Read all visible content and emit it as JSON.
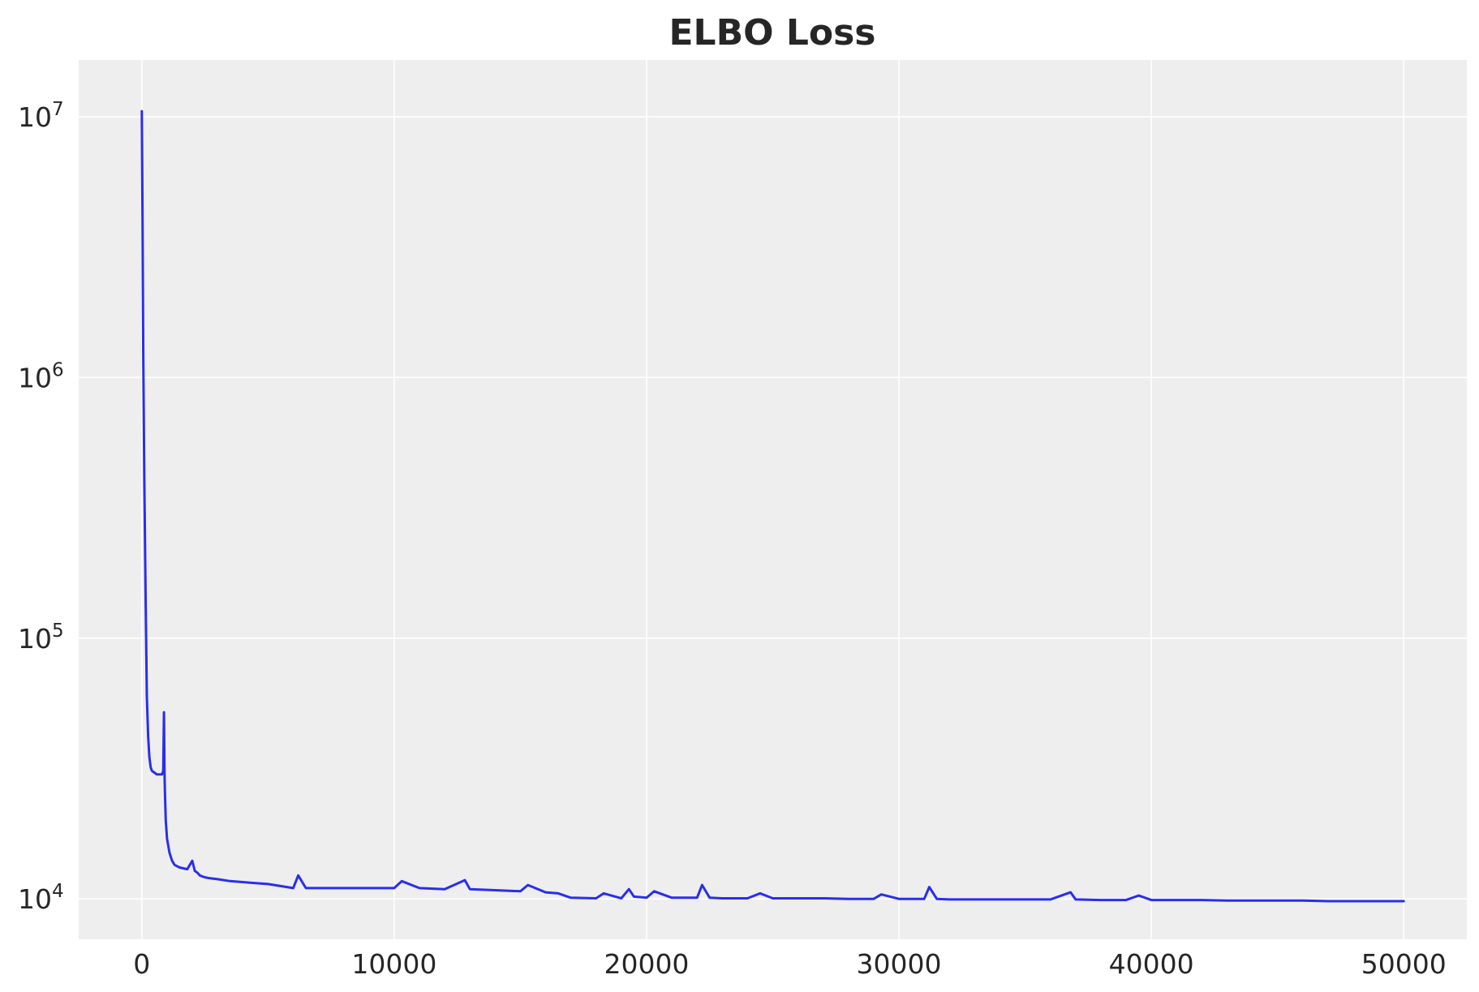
{
  "chart_data": {
    "type": "line",
    "title": "ELBO Loss",
    "xlabel": "",
    "ylabel": "",
    "xlim": [
      -2500,
      52500
    ],
    "ylim": [
      7000,
      16500000
    ],
    "y_scale": "log",
    "grid": true,
    "legend": "none",
    "x_ticks": [
      0,
      10000,
      20000,
      30000,
      40000,
      50000
    ],
    "x_tick_labels": [
      "0",
      "10000",
      "20000",
      "30000",
      "40000",
      "50000"
    ],
    "y_ticks": [
      10000,
      100000,
      1000000,
      10000000
    ],
    "y_tick_labels": [
      {
        "base": "10",
        "exp": "4"
      },
      {
        "base": "10",
        "exp": "5"
      },
      {
        "base": "10",
        "exp": "6"
      },
      {
        "base": "10",
        "exp": "7"
      }
    ],
    "series": [
      {
        "color": "#2a2eec",
        "x": [
          0,
          30,
          60,
          100,
          150,
          200,
          250,
          300,
          350,
          400,
          500,
          600,
          700,
          800,
          850,
          880,
          900,
          920,
          950,
          1000,
          1100,
          1200,
          1300,
          1500,
          1800,
          2000,
          2100,
          2200,
          2300,
          2500,
          2700,
          3000,
          3500,
          4000,
          4500,
          5000,
          5500,
          6000,
          6200,
          6500,
          7000,
          8000,
          9000,
          10000,
          10300,
          11000,
          12000,
          12800,
          13000,
          14000,
          15000,
          15300,
          16000,
          16500,
          17000,
          18000,
          18300,
          19000,
          19300,
          19500,
          20000,
          20300,
          21000,
          22000,
          22200,
          22500,
          23000,
          24000,
          24500,
          25000,
          26000,
          27000,
          28000,
          29000,
          29300,
          30000,
          31000,
          31200,
          31500,
          32000,
          33000,
          34000,
          35000,
          36000,
          36800,
          37000,
          38000,
          39000,
          39500,
          40000,
          41000,
          42000,
          43000,
          44000,
          45000,
          46000,
          47000,
          48000,
          49000,
          50000
        ],
        "y": [
          10500000,
          4000000,
          1200000,
          400000,
          150000,
          60000,
          42000,
          35000,
          32000,
          31000,
          30500,
          30000,
          30000,
          30000,
          31000,
          52000,
          30000,
          25000,
          20000,
          17000,
          15000,
          14000,
          13500,
          13200,
          13000,
          14000,
          12800,
          12600,
          12300,
          12100,
          12000,
          11900,
          11700,
          11600,
          11500,
          11400,
          11200,
          11000,
          12300,
          11000,
          11000,
          11000,
          11000,
          11000,
          11700,
          11000,
          10900,
          11800,
          10900,
          10800,
          10700,
          11300,
          10600,
          10500,
          10100,
          10050,
          10500,
          10050,
          10900,
          10200,
          10100,
          10700,
          10100,
          10100,
          11300,
          10100,
          10050,
          10050,
          10500,
          10050,
          10050,
          10050,
          10000,
          10000,
          10400,
          10000,
          10000,
          11100,
          10000,
          9950,
          9950,
          9950,
          9950,
          9950,
          10600,
          9950,
          9900,
          9900,
          10300,
          9900,
          9900,
          9900,
          9850,
          9850,
          9850,
          9850,
          9800,
          9800,
          9800,
          9800
        ]
      }
    ]
  }
}
